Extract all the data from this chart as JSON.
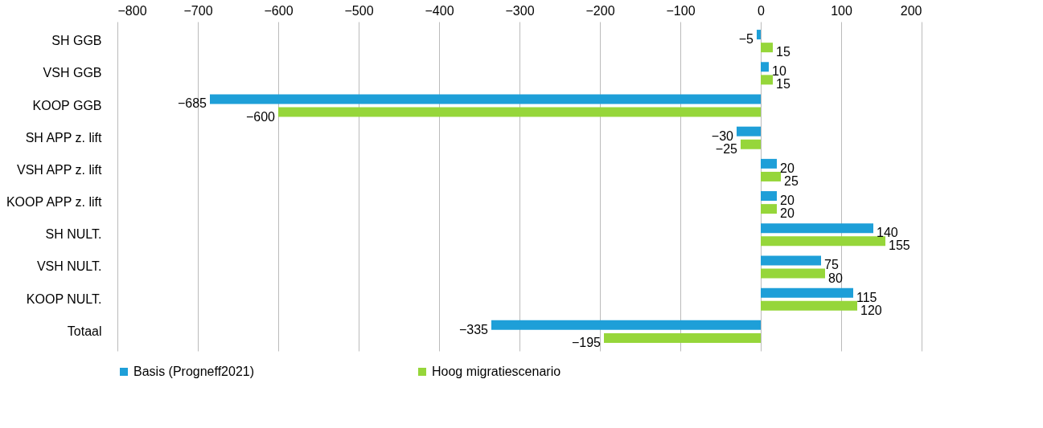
{
  "chart_data": {
    "type": "bar",
    "orientation": "horizontal",
    "categories": [
      "SH GGB",
      "VSH GGB",
      "KOOP GGB",
      "SH APP z. lift",
      "VSH APP z. lift",
      "KOOP APP z. lift",
      "SH NULT.",
      "VSH NULT.",
      "KOOP NULT.",
      "Totaal"
    ],
    "series": [
      {
        "name": "Basis (Progneff2021)",
        "color": "#1e9fd8",
        "values": [
          -5,
          10,
          -685,
          -30,
          20,
          20,
          140,
          75,
          115,
          -335
        ]
      },
      {
        "name": "Hoog migratiescenario",
        "color": "#96d63a",
        "values": [
          15,
          15,
          -600,
          -25,
          25,
          20,
          155,
          80,
          120,
          -195
        ]
      }
    ],
    "xlim": [
      -800,
      200
    ],
    "xticks": [
      -800,
      -700,
      -600,
      -500,
      -400,
      -300,
      -200,
      -100,
      0,
      100,
      200
    ],
    "grid": "x",
    "legend": "bottom",
    "data_labels": true
  }
}
